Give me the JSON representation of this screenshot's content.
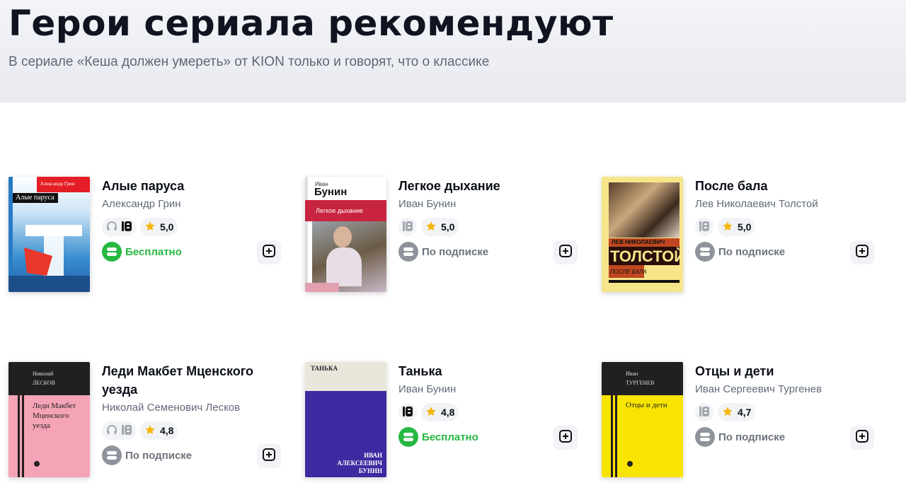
{
  "header": {
    "title": "Герои сериала рекомендуют",
    "subtitle": "В сериале «Кеша должен умереть» от KION только и говорят, что о классике"
  },
  "colors": {
    "free": "#26b840",
    "subscription": "#8e939c",
    "accent_star": "#f5b60a"
  },
  "books": [
    {
      "title": "Алые паруса",
      "author": "Александр Грин",
      "rating": "5,0",
      "audio": true,
      "audio_active": false,
      "ebook_active": true,
      "price": "Бесплатно",
      "price_type": "free",
      "cover": {
        "style": "grin",
        "lines": [
          "Александр Грин",
          "Алые паруса"
        ]
      }
    },
    {
      "title": "Легкое дыхание",
      "author": "Иван Бунин",
      "rating": "5,0",
      "audio": false,
      "ebook_active": false,
      "price": "По подписке",
      "price_type": "subscription",
      "cover": {
        "style": "bunin",
        "lines": [
          "Иван",
          "Бунин",
          "Легкое дыхание"
        ]
      }
    },
    {
      "title": "После бала",
      "author": "Лев Николаевич Толстой",
      "rating": "5,0",
      "audio": false,
      "ebook_active": false,
      "price": "По подписке",
      "price_type": "subscription",
      "cover": {
        "style": "tolstoy",
        "lines": [
          "ЛЕВ НИКОЛАЕВИЧ",
          "ТОЛСТОЙ",
          "ПОСЛЕ БАЛА"
        ]
      }
    },
    {
      "title": "Леди Макбет Мценского уезда",
      "author": "Николай Семенович Лесков",
      "rating": "4,8",
      "audio": true,
      "audio_active": false,
      "ebook_active": false,
      "price": "По подписке",
      "price_type": "subscription",
      "cover": {
        "style": "leskov",
        "lines": [
          "Николай",
          "ЛЕСКОВ",
          "Леди Макбет Мценского уезда"
        ]
      }
    },
    {
      "title": "Танька",
      "author": "Иван Бунин",
      "rating": "4,8",
      "audio": false,
      "ebook_active": true,
      "price": "Бесплатно",
      "price_type": "free",
      "cover": {
        "style": "tanka",
        "lines": [
          "ТАНЬКА",
          "ИВАН АЛЕКСЕЕВИЧ БУНИН"
        ]
      }
    },
    {
      "title": "Отцы и дети",
      "author": "Иван Сергеевич Тургенев",
      "rating": "4,7",
      "audio": false,
      "ebook_active": false,
      "price": "По подписке",
      "price_type": "subscription",
      "cover": {
        "style": "turgenev",
        "lines": [
          "Иван",
          "ТУРГЕНЕВ",
          "Отцы и дети"
        ]
      }
    }
  ]
}
